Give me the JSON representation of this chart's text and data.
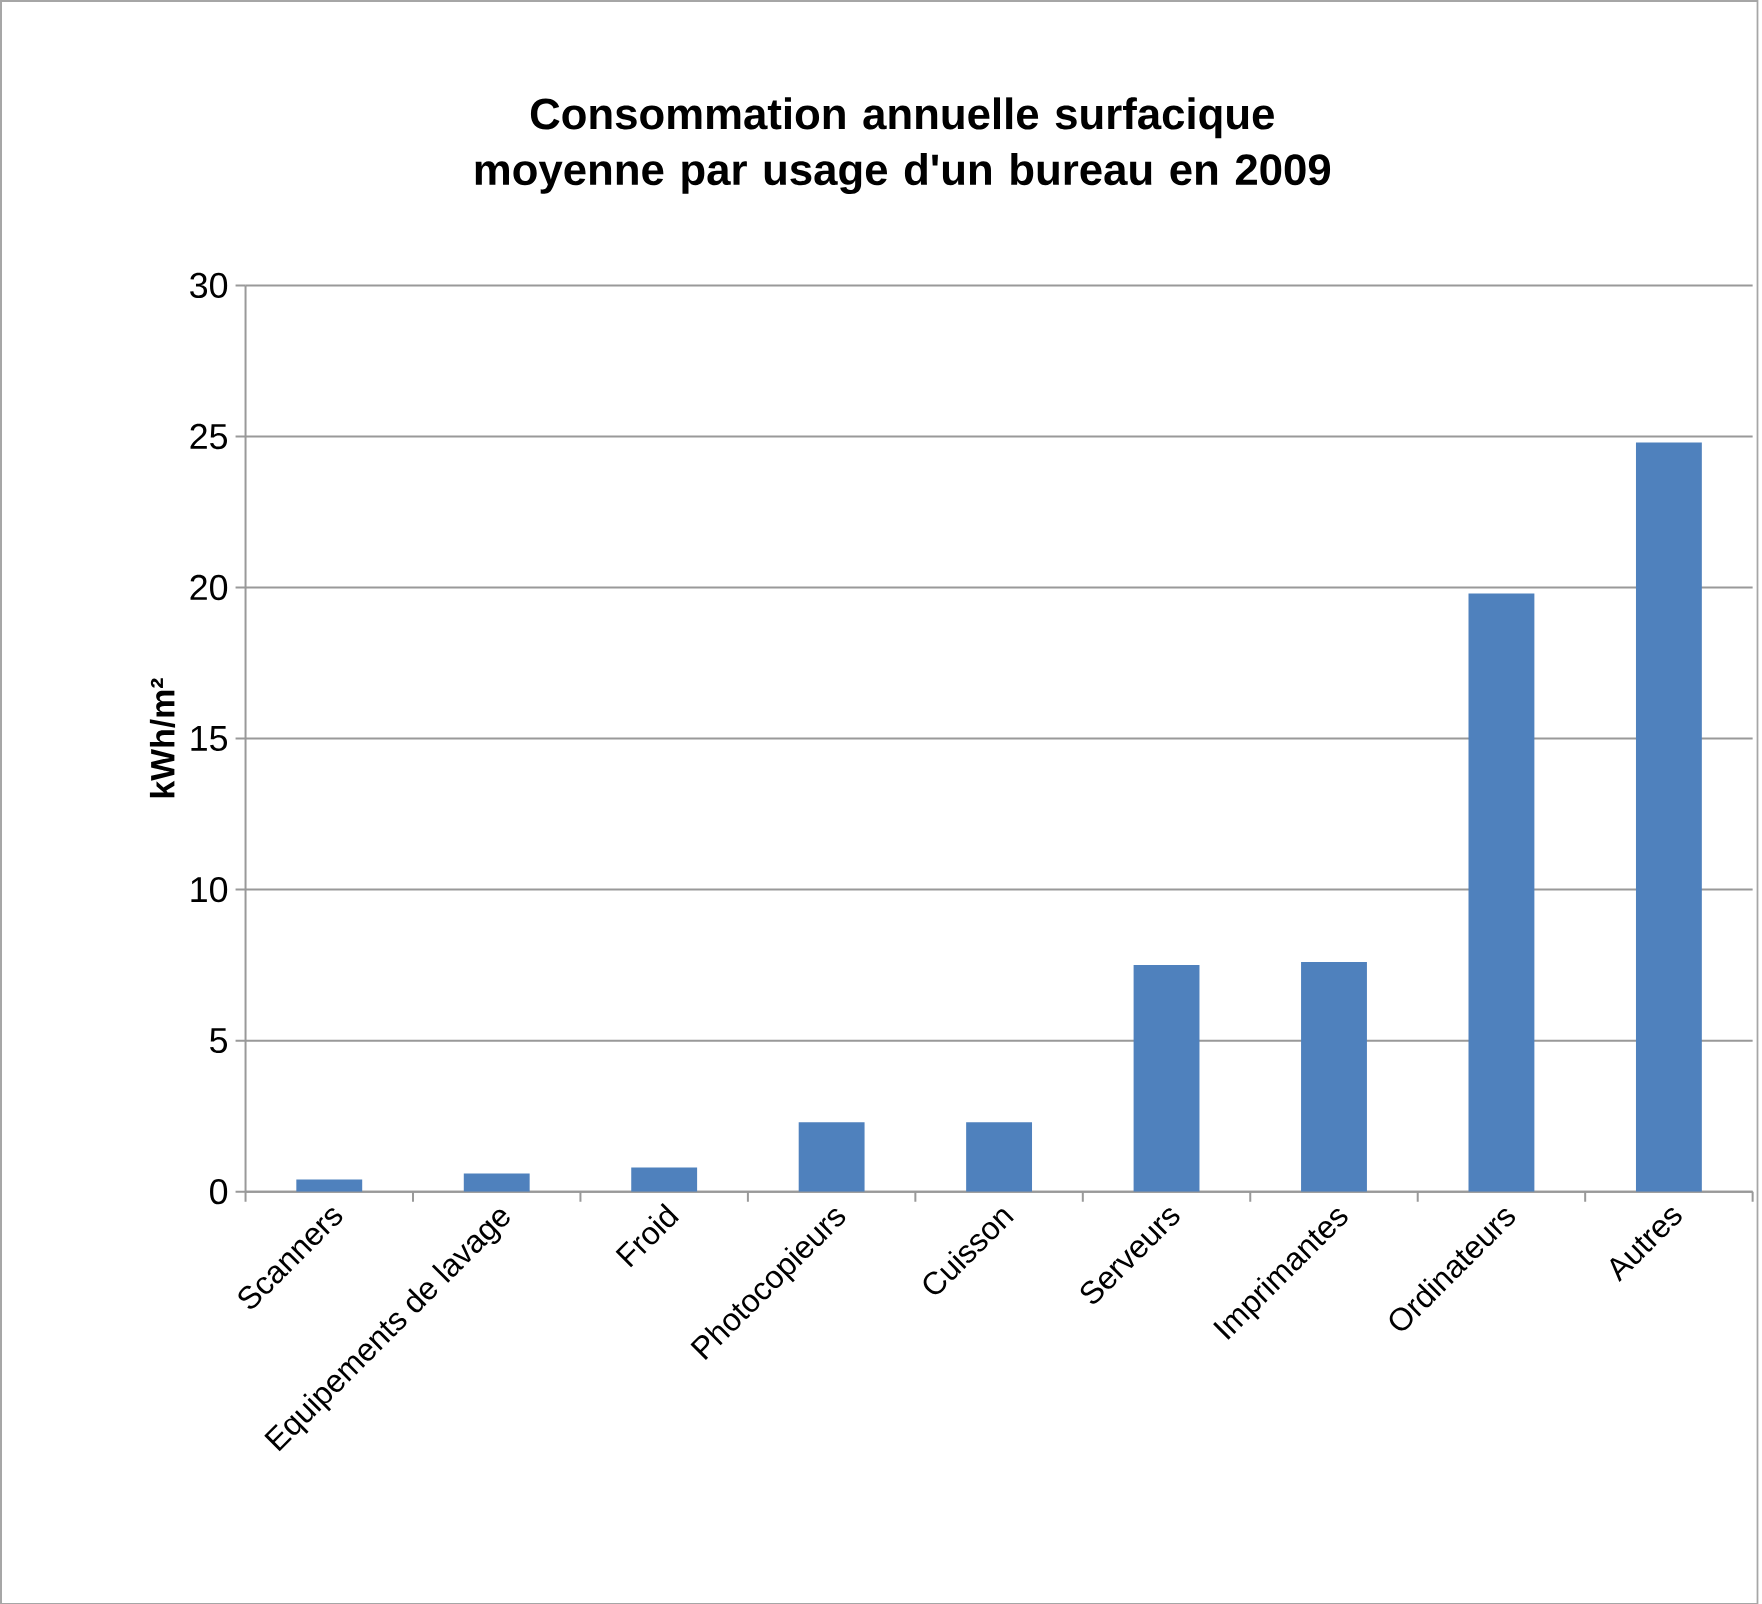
{
  "chart_data": {
    "type": "bar",
    "title": "Consommation  annuelle surfacique moyenne par usage d'un bureau en 2009",
    "ylabel": "kWh/m²",
    "categories": [
      "Scanners",
      "Equipements de lavage",
      "Froid",
      "Photocopieurs",
      "Cuisson",
      "Serveurs",
      "Imprimantes",
      "Ordinateurs",
      "Autres"
    ],
    "values": [
      0.4,
      0.6,
      0.8,
      2.3,
      2.3,
      7.5,
      7.6,
      19.8,
      24.8
    ],
    "color": "#4f81bd",
    "ylim": [
      0,
      30
    ],
    "yticks": [
      0,
      5,
      10,
      15,
      20,
      25,
      30
    ],
    "grid": "y"
  }
}
